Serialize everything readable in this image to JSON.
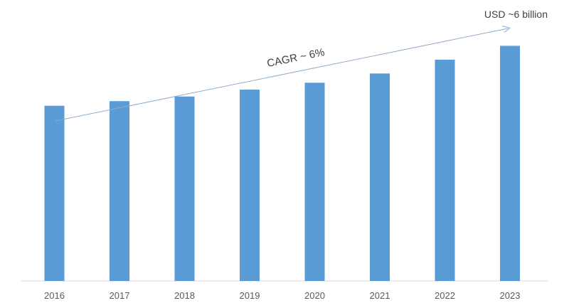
{
  "chart_data": {
    "type": "bar",
    "categories": [
      "2016",
      "2017",
      "2018",
      "2019",
      "2020",
      "2021",
      "2022",
      "2023"
    ],
    "values": [
      3.8,
      3.9,
      4.0,
      4.15,
      4.3,
      4.5,
      4.8,
      5.1
    ],
    "ylim": [
      0,
      5.6
    ],
    "grid": false,
    "legend": "none",
    "bar_color": "#5b9bd5",
    "arrow_color": "#8eaccc",
    "annotations": {
      "cagr": "CAGR ~ 6%",
      "end_value": "USD ~6 billion"
    }
  }
}
